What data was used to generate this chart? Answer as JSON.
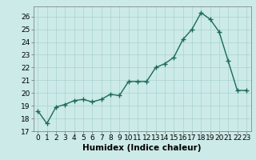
{
  "x": [
    0,
    1,
    2,
    3,
    4,
    5,
    6,
    7,
    8,
    9,
    10,
    11,
    12,
    13,
    14,
    15,
    16,
    17,
    18,
    19,
    20,
    21,
    22,
    23
  ],
  "y": [
    18.6,
    17.6,
    18.9,
    19.1,
    19.4,
    19.5,
    19.3,
    19.5,
    19.9,
    19.8,
    20.9,
    20.9,
    20.9,
    22.0,
    22.3,
    22.8,
    24.2,
    25.0,
    26.3,
    25.8,
    24.8,
    22.5,
    20.2,
    20.2
  ],
  "line_color": "#1a6b5a",
  "marker": "+",
  "marker_size": 4,
  "xlabel": "Humidex (Indice chaleur)",
  "xlim": [
    -0.5,
    23.5
  ],
  "ylim": [
    17,
    26.8
  ],
  "yticks": [
    17,
    18,
    19,
    20,
    21,
    22,
    23,
    24,
    25,
    26
  ],
  "xticks": [
    0,
    1,
    2,
    3,
    4,
    5,
    6,
    7,
    8,
    9,
    10,
    11,
    12,
    13,
    14,
    15,
    16,
    17,
    18,
    19,
    20,
    21,
    22,
    23
  ],
  "bg_color": "#cceae7",
  "grid_color": "#aad4d0",
  "tick_label_fontsize": 6.5,
  "xlabel_fontsize": 7.5,
  "line_width": 1.0
}
